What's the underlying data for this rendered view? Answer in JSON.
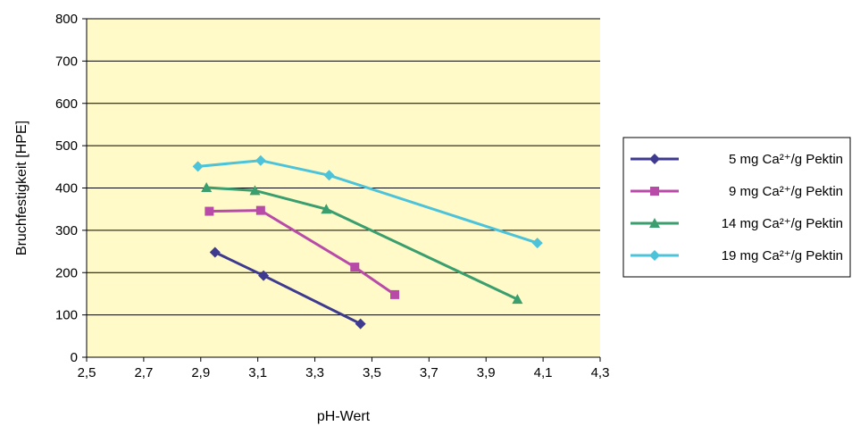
{
  "chart_data": {
    "type": "line",
    "title": "",
    "xlabel": "pH-Wert",
    "ylabel": "Bruchfestigkeit [HPE]",
    "xlim": [
      2.5,
      4.3
    ],
    "ylim": [
      0,
      800
    ],
    "x_ticks": [
      "2,5",
      "2,7",
      "2,9",
      "3,1",
      "3,3",
      "3,5",
      "3,7",
      "3,9",
      "4,1",
      "4,3"
    ],
    "x_tick_values": [
      2.5,
      2.7,
      2.9,
      3.1,
      3.3,
      3.5,
      3.7,
      3.9,
      4.1,
      4.3
    ],
    "y_ticks": [
      "0",
      "100",
      "200",
      "300",
      "400",
      "500",
      "600",
      "700",
      "800"
    ],
    "y_tick_values": [
      0,
      100,
      200,
      300,
      400,
      500,
      600,
      700,
      800
    ],
    "grid": "horizontal",
    "legend_position": "right",
    "plot_background": "#FFFAC8",
    "series": [
      {
        "name": "5 mg Ca²⁺/g Pektin",
        "color": "#3D3A8F",
        "marker": "diamond",
        "points": [
          [
            2.95,
            248
          ],
          [
            3.12,
            193
          ],
          [
            3.46,
            79
          ]
        ]
      },
      {
        "name": "9 mg Ca²⁺/g Pektin",
        "color": "#B84BA8",
        "marker": "square",
        "points": [
          [
            2.93,
            345
          ],
          [
            3.11,
            347
          ],
          [
            3.44,
            213
          ],
          [
            3.58,
            148
          ]
        ]
      },
      {
        "name": "14 mg Ca²⁺/g Pektin",
        "color": "#3A9E6E",
        "marker": "triangle",
        "points": [
          [
            2.92,
            401
          ],
          [
            3.09,
            394
          ],
          [
            3.34,
            350
          ],
          [
            4.01,
            137
          ]
        ]
      },
      {
        "name": "19 mg Ca²⁺/g Pektin",
        "color": "#4CC3D9",
        "marker": "diamond",
        "points": [
          [
            2.89,
            451
          ],
          [
            3.11,
            465
          ],
          [
            3.35,
            430
          ],
          [
            4.08,
            270
          ]
        ]
      }
    ]
  }
}
